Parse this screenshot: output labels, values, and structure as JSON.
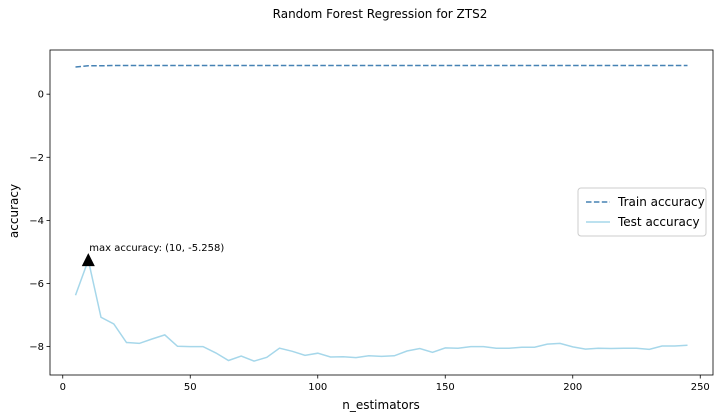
{
  "chart_data": {
    "type": "line",
    "title": "Random Forest Regression for ZTS2",
    "xlabel": "n_estimators",
    "ylabel": "accuracy",
    "xlim": [
      -5,
      255
    ],
    "ylim": [
      -8.9,
      1.4
    ],
    "xticks": [
      0,
      50,
      100,
      150,
      200,
      250
    ],
    "yticks": [
      -8,
      -6,
      -4,
      -2,
      0
    ],
    "xtick_labels": [
      "0",
      "50",
      "100",
      "150",
      "200",
      "250"
    ],
    "ytick_labels": [
      "−8",
      "−6",
      "−4",
      "−2",
      "0"
    ],
    "grid": false,
    "legend_position": "center-right",
    "x": [
      5,
      10,
      15,
      20,
      25,
      30,
      35,
      40,
      45,
      50,
      55,
      60,
      65,
      70,
      75,
      80,
      85,
      90,
      95,
      100,
      105,
      110,
      115,
      120,
      125,
      130,
      135,
      140,
      145,
      150,
      155,
      160,
      165,
      170,
      175,
      180,
      185,
      190,
      195,
      200,
      205,
      210,
      215,
      220,
      225,
      230,
      235,
      240,
      245
    ],
    "series": [
      {
        "name": "Train accuracy",
        "style": "dashed",
        "color": "#4682b4",
        "values": [
          0.86,
          0.9,
          0.9,
          0.91,
          0.91,
          0.91,
          0.91,
          0.91,
          0.91,
          0.91,
          0.91,
          0.91,
          0.91,
          0.91,
          0.91,
          0.91,
          0.91,
          0.91,
          0.91,
          0.91,
          0.91,
          0.91,
          0.91,
          0.91,
          0.91,
          0.91,
          0.91,
          0.91,
          0.91,
          0.91,
          0.91,
          0.91,
          0.91,
          0.91,
          0.91,
          0.91,
          0.91,
          0.91,
          0.91,
          0.91,
          0.91,
          0.91,
          0.91,
          0.91,
          0.91,
          0.91,
          0.91,
          0.91,
          0.91
        ]
      },
      {
        "name": "Test accuracy",
        "style": "solid",
        "color": "#a6d7ea",
        "values": [
          -6.37,
          -5.26,
          -7.07,
          -7.28,
          -7.87,
          -7.9,
          -7.76,
          -7.63,
          -7.99,
          -8.0,
          -8.0,
          -8.2,
          -8.44,
          -8.3,
          -8.46,
          -8.34,
          -8.05,
          -8.15,
          -8.28,
          -8.21,
          -8.33,
          -8.32,
          -8.35,
          -8.29,
          -8.31,
          -8.29,
          -8.14,
          -8.06,
          -8.18,
          -8.04,
          -8.05,
          -8.0,
          -8.0,
          -8.05,
          -8.05,
          -8.02,
          -8.02,
          -7.92,
          -7.9,
          -8.01,
          -8.08,
          -8.05,
          -8.06,
          -8.05,
          -8.05,
          -8.09,
          -7.98,
          -7.98,
          -7.96
        ]
      }
    ],
    "annotation": {
      "text": "max accuracy: (10, -5.258)",
      "x": 10,
      "y": -5.258,
      "marker": "triangle",
      "color": "#000000"
    }
  }
}
